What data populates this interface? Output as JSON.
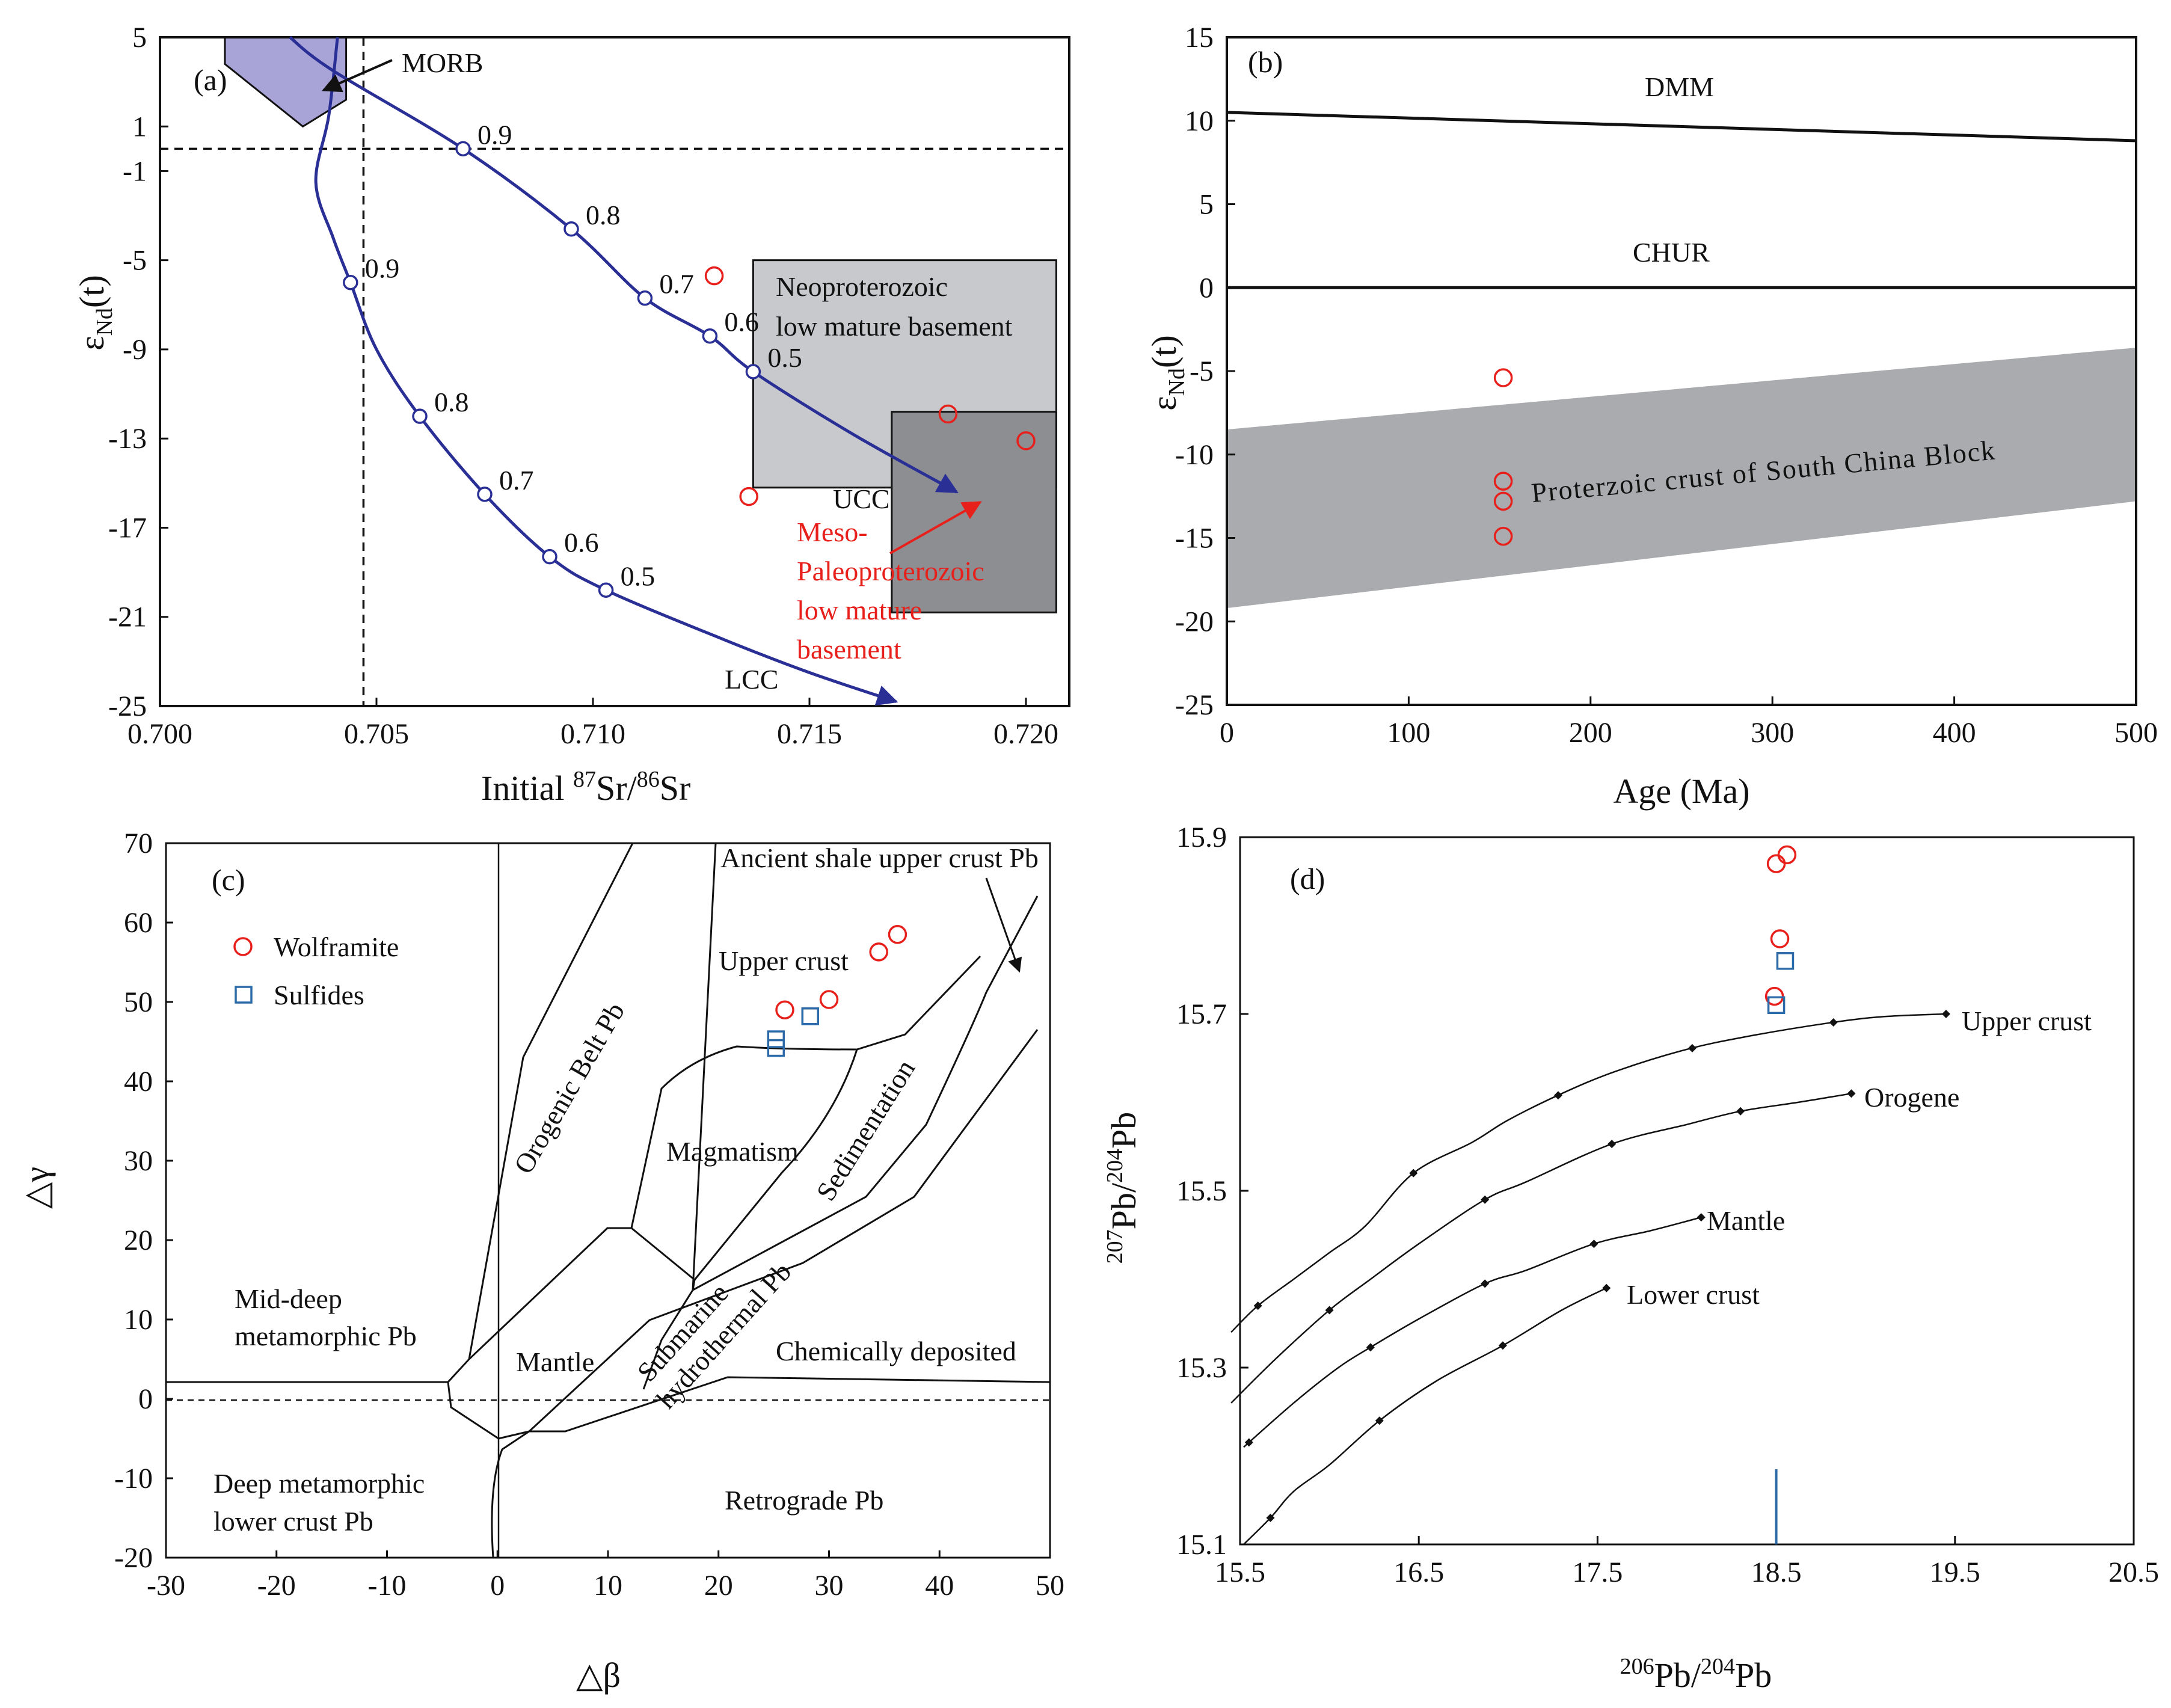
{
  "colors": {
    "mixing": "#2a2f96",
    "morb": "#a8a4d8",
    "neobox": "#c7c9cc",
    "mesobox": "#8d8e91",
    "band": "#a9abae",
    "red": "#e8201c",
    "blue": "#2d6aa8",
    "black": "#111111"
  },
  "chart_data": [
    {
      "panel": "(a)",
      "type": "line",
      "xlabel_pre": "Initial ",
      "xlabel_sup1": "87",
      "xlabel_mid": "Sr/",
      "xlabel_sup2": "86",
      "xlabel_post": "Sr",
      "ylabel_main": "ε",
      "ylabel_sub": "Nd",
      "ylabel_post": "(t)",
      "xlim": [
        0.7,
        0.721
      ],
      "ylim": [
        -25,
        5
      ],
      "xticks": [
        "0.700",
        "0.705",
        "0.710",
        "0.715",
        "0.720"
      ],
      "yticks": [
        "5",
        "1",
        "-1",
        "-5",
        "-9",
        "-13",
        "-17",
        "-21",
        "-25"
      ],
      "xtick_values": [
        0.7,
        0.705,
        0.71,
        0.715,
        0.72
      ],
      "ytick_values": [
        5,
        1,
        -1,
        -5,
        -9,
        -13,
        -17,
        -21,
        -25
      ],
      "refline_x": 0.7047,
      "refline_y": 0,
      "morb_field": [
        [
          0.7015,
          5
        ],
        [
          0.7043,
          5
        ],
        [
          0.7043,
          2.2
        ],
        [
          0.7033,
          1.0
        ],
        [
          0.7015,
          3.8
        ]
      ],
      "series": [
        {
          "name": "UCC",
          "arrow": true,
          "points": [
            [
              0.703,
              5
            ],
            [
              0.704,
              3.5
            ],
            [
              0.707,
              0
            ],
            [
              0.7095,
              -3.6
            ],
            [
              0.7112,
              -6.7
            ],
            [
              0.7127,
              -8.4
            ],
            [
              0.7137,
              -10.0
            ],
            [
              0.716,
              -12.8
            ],
            [
              0.7184,
              -15.4
            ]
          ],
          "markers": [
            [
              0.707,
              0,
              "0.9"
            ],
            [
              0.7095,
              -3.6,
              "0.8"
            ],
            [
              0.7112,
              -6.7,
              "0.7"
            ],
            [
              0.7127,
              -8.4,
              "0.6"
            ],
            [
              0.7137,
              -10.0,
              "0.5"
            ]
          ]
        },
        {
          "name": "LCC",
          "arrow": true,
          "points": [
            [
              0.7041,
              5
            ],
            [
              0.7039,
              1.5
            ],
            [
              0.7036,
              -1.5
            ],
            [
              0.704,
              -4.0
            ],
            [
              0.7044,
              -6.0
            ],
            [
              0.705,
              -9.0
            ],
            [
              0.706,
              -12.0
            ],
            [
              0.7075,
              -15.5
            ],
            [
              0.709,
              -18.3
            ],
            [
              0.7103,
              -19.8
            ],
            [
              0.713,
              -22.0
            ],
            [
              0.715,
              -23.5
            ],
            [
              0.717,
              -24.8
            ]
          ],
          "markers": [
            [
              0.7044,
              -6.0,
              "0.9"
            ],
            [
              0.706,
              -12.0,
              "0.8"
            ],
            [
              0.7075,
              -15.5,
              "0.7"
            ],
            [
              0.709,
              -18.3,
              "0.6"
            ],
            [
              0.7103,
              -19.8,
              "0.5"
            ]
          ]
        }
      ],
      "boxes": [
        {
          "label": [
            "Neoproterozoic",
            "low mature basement"
          ],
          "x": [
            0.7137,
            0.7207
          ],
          "y": [
            -5,
            -15.2
          ]
        },
        {
          "label": [
            "Meso-",
            "Paleoproterozoic",
            "low mature",
            "basement"
          ],
          "x": [
            0.7169,
            0.7207
          ],
          "y": [
            -11.8,
            -20.8
          ]
        }
      ],
      "points": [
        [
          0.7128,
          -5.7
        ],
        [
          0.7182,
          -11.9
        ],
        [
          0.72,
          -13.1
        ],
        [
          0.7136,
          -15.6
        ]
      ],
      "labels": {
        "panel": "(a)",
        "morb": "MORB",
        "ucc": "UCC",
        "lcc": "LCC"
      }
    },
    {
      "panel": "(b)",
      "type": "line",
      "xlabel": "Age (Ma)",
      "ylabel_main": "ε",
      "ylabel_sub": "Nd",
      "ylabel_post": "(t)",
      "xlim": [
        0,
        500
      ],
      "ylim": [
        -25,
        15
      ],
      "xticks": [
        "0",
        "100",
        "200",
        "300",
        "400",
        "500"
      ],
      "yticks": [
        "15",
        "10",
        "5",
        "0",
        "-5",
        "-10",
        "-15",
        "-20",
        "-25"
      ],
      "xtick_values": [
        0,
        100,
        200,
        300,
        400,
        500
      ],
      "ytick_values": [
        15,
        10,
        5,
        0,
        -5,
        -10,
        -15,
        -20,
        -25
      ],
      "series": [
        {
          "name": "DMM",
          "x": [
            0,
            500
          ],
          "y": [
            10.5,
            8.8
          ]
        },
        {
          "name": "CHUR",
          "x": [
            0,
            500
          ],
          "y": [
            0,
            0
          ]
        }
      ],
      "band": {
        "label": "Proterzoic crust of South China Block",
        "upper": [
          [
            0,
            -8.5
          ],
          [
            500,
            -3.6
          ]
        ],
        "lower": [
          [
            0,
            -19.2
          ],
          [
            500,
            -12.8
          ]
        ]
      },
      "points": [
        [
          152,
          -5.4
        ],
        [
          152,
          -11.6
        ],
        [
          152,
          -12.8
        ],
        [
          152,
          -14.9
        ]
      ]
    },
    {
      "panel": "(c)",
      "type": "scatter",
      "xlabel": "△β",
      "ylabel": "△γ",
      "xlim": [
        -30,
        50
      ],
      "ylim": [
        -20,
        70
      ],
      "xticks": [
        "-30",
        "-20",
        "-10",
        "0",
        "10",
        "20",
        "30",
        "40",
        "50"
      ],
      "yticks": [
        "70",
        "60",
        "50",
        "40",
        "30",
        "20",
        "10",
        "0",
        "-10",
        "-20"
      ],
      "xtick_values": [
        -30,
        -20,
        -10,
        0,
        10,
        20,
        30,
        40,
        50
      ],
      "ytick_values": [
        70,
        60,
        50,
        40,
        30,
        20,
        10,
        0,
        -10,
        -20
      ],
      "fields": [
        "Orogenic Belt Pb",
        "Magmatism",
        "Sedimentation",
        "Upper crust",
        "Ancient shale upper crust Pb",
        "Mid-deep",
        "metamorphic Pb",
        "Mantle",
        "Submarine",
        "hydrothermal Pb",
        "Chemically deposited",
        "Deep metamorphic",
        "lower crust Pb",
        "Retrograde Pb"
      ],
      "legend": [
        "Wolframite",
        "Sulfides"
      ],
      "series": [
        {
          "name": "Wolframite",
          "x": [
            26.0,
            30.0,
            34.5,
            36.2
          ],
          "y": [
            49.0,
            50.3,
            56.3,
            58.5
          ]
        },
        {
          "name": "Sulfides",
          "x": [
            25.2,
            25.2,
            28.3
          ],
          "y": [
            44.2,
            45.3,
            48.2
          ]
        }
      ]
    },
    {
      "panel": "(d)",
      "type": "line",
      "xlabel_sup1": "206",
      "xlabel_mid": "Pb/",
      "xlabel_sup2": "204",
      "xlabel_post": "Pb",
      "ylabel_sup1": "207",
      "ylabel_mid": "Pb/",
      "ylabel_sup2": "204",
      "ylabel_post": "Pb",
      "xlim": [
        15.5,
        20.5
      ],
      "ylim": [
        15.1,
        15.9
      ],
      "xticks": [
        "15.5",
        "16.5",
        "17.5",
        "18.5",
        "19.5",
        "20.5"
      ],
      "yticks": [
        "15.9",
        "15.7",
        "15.5",
        "15.3",
        "15.1"
      ],
      "xtick_values": [
        15.5,
        16.5,
        17.5,
        18.5,
        19.5,
        20.5
      ],
      "ytick_values": [
        15.9,
        15.7,
        15.5,
        15.3,
        15.1
      ],
      "series": [
        {
          "name": "Upper crust",
          "x": [
            15.45,
            15.6,
            15.8,
            16.0,
            16.2,
            16.47,
            16.8,
            17.0,
            17.3,
            17.6,
            18.0,
            18.35,
            18.8,
            19.1,
            19.45
          ],
          "y": [
            15.34,
            15.37,
            15.4,
            15.43,
            15.46,
            15.52,
            15.555,
            15.58,
            15.61,
            15.635,
            15.66,
            15.675,
            15.69,
            15.697,
            15.7
          ],
          "markers": [
            15.6,
            16.47,
            17.28,
            18.03,
            18.82,
            19.45
          ]
        },
        {
          "name": "Orogene",
          "x": [
            15.45,
            15.7,
            16.0,
            16.23,
            16.5,
            16.87,
            17.1,
            17.58,
            18.0,
            18.3,
            18.62,
            18.92
          ],
          "y": [
            15.26,
            15.31,
            15.365,
            15.4,
            15.44,
            15.49,
            15.51,
            15.553,
            15.575,
            15.59,
            15.6,
            15.61
          ],
          "markers": [
            16.0,
            16.87,
            17.58,
            18.3,
            18.92
          ]
        },
        {
          "name": "Mantle",
          "x": [
            15.52,
            15.8,
            16.05,
            16.23,
            16.5,
            16.87,
            17.1,
            17.48,
            17.8,
            18.08
          ],
          "y": [
            15.21,
            15.26,
            15.3,
            15.323,
            15.355,
            15.395,
            15.41,
            15.44,
            15.455,
            15.47
          ],
          "markers": [
            15.55,
            16.23,
            16.87,
            17.48,
            18.08
          ]
        },
        {
          "name": "Lower crust",
          "x": [
            15.52,
            15.67,
            15.8,
            16.0,
            16.28,
            16.6,
            16.97,
            17.3,
            17.55
          ],
          "y": [
            15.1,
            15.13,
            15.16,
            15.19,
            15.24,
            15.285,
            15.325,
            15.365,
            15.39
          ],
          "markers": [
            15.67,
            16.28,
            16.97,
            17.55
          ]
        }
      ],
      "wolframite": [
        [
          18.49,
          15.72
        ],
        [
          18.5,
          15.87
        ],
        [
          18.56,
          15.88
        ],
        [
          18.52,
          15.785
        ]
      ],
      "sulfides": [
        [
          18.5,
          15.71
        ],
        [
          18.55,
          15.76
        ]
      ],
      "vline": {
        "x": 18.5,
        "y": [
          15.1,
          15.185
        ]
      }
    }
  ]
}
